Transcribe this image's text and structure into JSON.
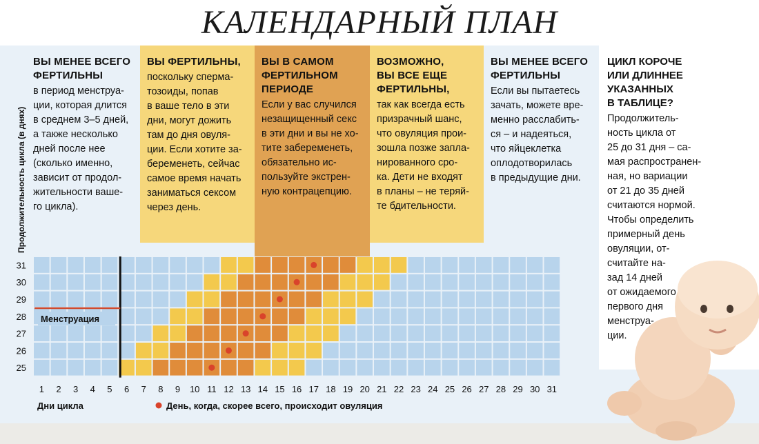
{
  "title": "КАЛЕНДАРНЫЙ ПЛАН",
  "columns": [
    {
      "heading": "ВЫ МЕНЕЕ ВСЕГО ФЕРТИЛЬНЫ",
      "heading_lines": [
        "ВЫ МЕНЕЕ ВСЕГО",
        "ФЕРТИЛЬНЫ"
      ],
      "body_lines": [
        "в период менструа-",
        "ции, которая длится",
        "в среднем 3–5 дней,",
        "а также несколько",
        "дней после нее",
        "(сколько именно,",
        "зависит от продол-",
        "жительности ваше-",
        "го цикла)."
      ]
    },
    {
      "heading": "ВЫ ФЕРТИЛЬНЫ,",
      "heading_lines": [
        "ВЫ ФЕРТИЛЬНЫ,"
      ],
      "body_lines": [
        "поскольку сперма-",
        "тозоиды, попав",
        "в ваше тело в эти",
        "дни, могут дожить",
        "там до дня овуля-",
        "ции. Если хотите за-",
        "беременеть, сейчас",
        "самое время начать",
        "заниматься сексом",
        "через день."
      ]
    },
    {
      "heading": "ВЫ В САМОМ ФЕРТИЛЬНОМ ПЕРИОДЕ",
      "heading_lines": [
        "ВЫ В САМОМ",
        "ФЕРТИЛЬНОМ",
        "ПЕРИОДЕ"
      ],
      "body_lines": [
        "Если у вас случился",
        "незащищенный секс",
        "в эти дни и вы не хо-",
        "тите забеременеть,",
        "обязательно ис-",
        "пользуйте экстрен-",
        "ную контрацепцию."
      ]
    },
    {
      "heading": "ВОЗМОЖНО, ВЫ ВСЕ ЕЩЕ ФЕРТИЛЬНЫ,",
      "heading_lines": [
        "ВОЗМОЖНО,",
        "ВЫ ВСЕ ЕЩЕ",
        "ФЕРТИЛЬНЫ,"
      ],
      "body_lines": [
        "так как всегда есть",
        "призрачный шанс,",
        "что овуляция прои-",
        "зошла позже запла-",
        "нированного сро-",
        "ка. Дети не входят",
        "в планы – не теряй-",
        "те бдительности."
      ]
    },
    {
      "heading": "ВЫ МЕНЕЕ ВСЕГО ФЕРТИЛЬНЫ",
      "heading_lines": [
        "ВЫ МЕНЕЕ ВСЕГО",
        "ФЕРТИЛЬНЫ"
      ],
      "body_lines": [
        "Если вы пытаетесь",
        "зачать, можете вре-",
        "менно расслабить-",
        "ся – и надеяться,",
        "что яйцеклетка",
        "оплодотворилась",
        "в предыдущие дни."
      ]
    }
  ],
  "sidebar": {
    "heading_lines": [
      "ЦИКЛ КОРОЧЕ",
      "ИЛИ ДЛИННЕЕ",
      "УКАЗАННЫХ",
      "В ТАБЛИЦЕ?"
    ],
    "body_lines": [
      "Продолжитель-",
      "ность цикла от",
      "25 до 31 дня – са-",
      "мая распространен-",
      "ная, но вариации",
      "от 21 до 35 дней",
      "считаются нормой.",
      "Чтобы определить",
      "примерный день",
      "овуляции, от-",
      "считайте на-",
      "зад 14 дней",
      "от ожидаемого",
      "первого дня",
      "менструа-",
      "ции."
    ]
  },
  "chart_data": {
    "type": "heatmap",
    "ylabel": "Продолжительность цикла (в днях)",
    "xlabel": "Дни цикла",
    "x": [
      1,
      2,
      3,
      4,
      5,
      6,
      7,
      8,
      9,
      10,
      11,
      12,
      13,
      14,
      15,
      16,
      17,
      18,
      19,
      20,
      21,
      22,
      23,
      24,
      25,
      26,
      27,
      28,
      29,
      30,
      31
    ],
    "y": [
      31,
      30,
      29,
      28,
      27,
      26,
      25
    ],
    "menstruation_label": "Менструация",
    "menstruation_end_day": 5,
    "legend": {
      "marker": "day-of-ovulation",
      "label": "День, когда, скорее всего, происходит овуляция"
    },
    "colors": {
      "low": "#b8d4ec",
      "fertile": "#f3c94d",
      "peak": "#e08c3a",
      "ovulation": "#d9432b",
      "menstruation": "#cf4a2e"
    },
    "rows": [
      {
        "cycle": 31,
        "ovulation_day": 17,
        "fertile": [
          12,
          22
        ],
        "peak": [
          14,
          19
        ]
      },
      {
        "cycle": 30,
        "ovulation_day": 16,
        "fertile": [
          11,
          21
        ],
        "peak": [
          13,
          18
        ]
      },
      {
        "cycle": 29,
        "ovulation_day": 15,
        "fertile": [
          10,
          20
        ],
        "peak": [
          12,
          17
        ]
      },
      {
        "cycle": 28,
        "ovulation_day": 14,
        "fertile": [
          9,
          19
        ],
        "peak": [
          11,
          16
        ]
      },
      {
        "cycle": 27,
        "ovulation_day": 13,
        "fertile": [
          8,
          18
        ],
        "peak": [
          10,
          15
        ]
      },
      {
        "cycle": 26,
        "ovulation_day": 12,
        "fertile": [
          7,
          17
        ],
        "peak": [
          9,
          14
        ]
      },
      {
        "cycle": 25,
        "ovulation_day": 11,
        "fertile": [
          6,
          16
        ],
        "peak": [
          8,
          13
        ]
      }
    ]
  }
}
